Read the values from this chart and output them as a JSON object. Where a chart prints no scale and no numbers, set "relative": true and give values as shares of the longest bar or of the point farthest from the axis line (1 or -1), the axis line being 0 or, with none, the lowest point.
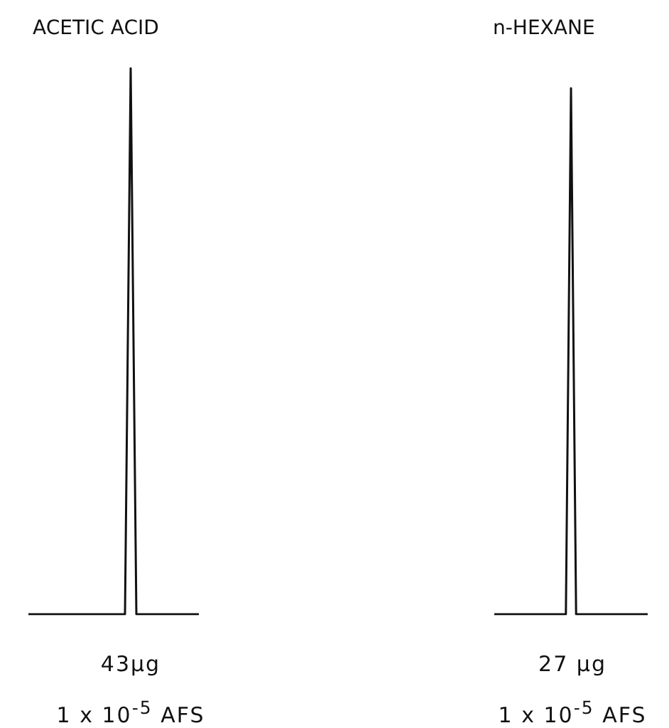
{
  "chart_data": [
    {
      "type": "line",
      "title": "ACETIC ACID",
      "relative": true,
      "categories": [
        null,
        null,
        null,
        null,
        null,
        null,
        null,
        null,
        null,
        null,
        null,
        null,
        null,
        null,
        null,
        null,
        null,
        null,
        null,
        null,
        null,
        null,
        null,
        null,
        null,
        null,
        null,
        null,
        null,
        null,
        null
      ],
      "series": [
        {
          "color": "#111111",
          "values": [
            0,
            0,
            0,
            0,
            0,
            0,
            0,
            0,
            0,
            0,
            0,
            0,
            0,
            0,
            0,
            0,
            0,
            0,
            1,
            0,
            0,
            0,
            0,
            0,
            0,
            0,
            0,
            0,
            0,
            0,
            0
          ]
        }
      ],
      "annotations": [
        "43μg",
        "1 x 10$^{-5}$ AFS"
      ]
    },
    {
      "type": "line",
      "title": "n-HEXANE",
      "relative": true,
      "categories": [
        null,
        null,
        null,
        null,
        null,
        null,
        null,
        null,
        null,
        null,
        null,
        null,
        null,
        null,
        null,
        null,
        null,
        null,
        null,
        null,
        null,
        null,
        null,
        null,
        null,
        null,
        null,
        null,
        null,
        null,
        null
      ],
      "series": [
        {
          "color": "#111111",
          "values": [
            0,
            0,
            0,
            0,
            0,
            0,
            0,
            0,
            0,
            0,
            0,
            0,
            0,
            0,
            0,
            1,
            0,
            0,
            0,
            0,
            0,
            0,
            0,
            0,
            0,
            0,
            0,
            0,
            0,
            0,
            0
          ]
        }
      ],
      "annotations": [
        "27 μg",
        "1 x 10$^{-5}$ AFS"
      ]
    }
  ]
}
